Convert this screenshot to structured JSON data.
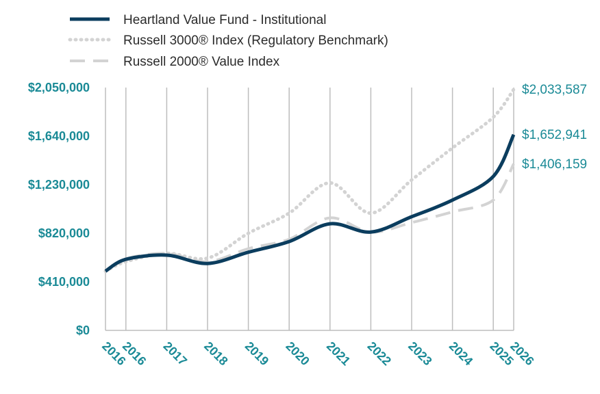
{
  "colors": {
    "fund": "#0b3d5e",
    "russell3000": "#d3d3d3",
    "russell2000": "#d3d3d3",
    "axis_text": "#1a8a96",
    "grid": "#bdbdbd"
  },
  "chart_data": {
    "type": "line",
    "title": "",
    "xlabel": "",
    "ylabel": "",
    "ylim": [
      0,
      2050000
    ],
    "yticks": [
      {
        "value": 0,
        "label": "$0"
      },
      {
        "value": 410000,
        "label": "$410,000"
      },
      {
        "value": 820000,
        "label": "$820,000"
      },
      {
        "value": 1230000,
        "label": "$1,230,000"
      },
      {
        "value": 1640000,
        "label": "$1,640,000"
      },
      {
        "value": 2050000,
        "label": "$2,050,000"
      }
    ],
    "x_positions": [
      0,
      0.5,
      1.5,
      2.5,
      3.5,
      4.5,
      5.5,
      6.5,
      7.5,
      8.5,
      9.5,
      10
    ],
    "x_tick_labels": [
      "2016",
      "2016",
      "2017",
      "2018",
      "2019",
      "2020",
      "2021",
      "2022",
      "2023",
      "2024",
      "2025",
      "2026"
    ],
    "legend_position": "top-left",
    "grid": "vertical",
    "series": [
      {
        "name": "Heartland Value Fund - Institutional",
        "style": "solid",
        "end_label": "$1,652,941",
        "values": [
          500000,
          600000,
          635000,
          565000,
          660000,
          750000,
          900000,
          830000,
          960000,
          1100000,
          1300000,
          1652941
        ]
      },
      {
        "name": "Russell 3000® Index (Regulatory Benchmark)",
        "style": "dotted",
        "end_label": "$2,033,587",
        "values": [
          500000,
          580000,
          650000,
          610000,
          820000,
          990000,
          1245000,
          990000,
          1270000,
          1540000,
          1800000,
          2033587
        ]
      },
      {
        "name": "Russell 2000® Value Index",
        "style": "dashed",
        "end_label": "$1,406,159",
        "values": [
          500000,
          605000,
          650000,
          580000,
          690000,
          770000,
          950000,
          830000,
          910000,
          1000000,
          1100000,
          1406159
        ]
      }
    ]
  }
}
